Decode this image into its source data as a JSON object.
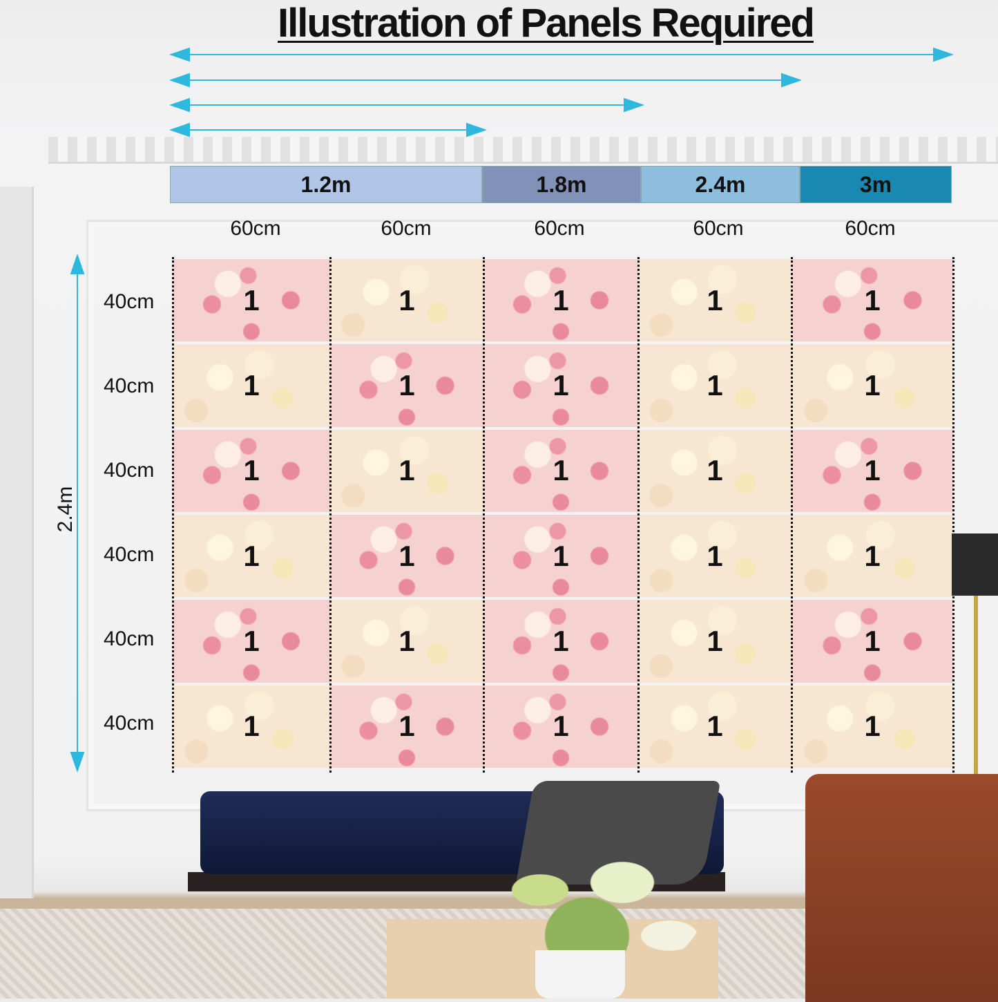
{
  "title": "Illustration of Panels Required",
  "width_options": [
    {
      "label": "1.2m",
      "color": "#b1c5e6"
    },
    {
      "label": "1.8m",
      "color": "#8191b7"
    },
    {
      "label": "2.4m",
      "color": "#8ebedd"
    },
    {
      "label": "3m",
      "color": "#1989b3"
    }
  ],
  "arrow_color": "#2fb8de",
  "column_widths": [
    "60cm",
    "60cm",
    "60cm",
    "60cm",
    "60cm"
  ],
  "row_heights": [
    "40cm",
    "40cm",
    "40cm",
    "40cm",
    "40cm",
    "40cm"
  ],
  "total_height": "2.4m",
  "panel_count_label": "1",
  "panel_pattern": [
    [
      "pink",
      "cream",
      "pink",
      "cream",
      "pink"
    ],
    [
      "cream",
      "pink",
      "pink",
      "cream",
      "cream"
    ],
    [
      "pink",
      "cream",
      "pink",
      "cream",
      "pink"
    ],
    [
      "cream",
      "pink",
      "pink",
      "cream",
      "cream"
    ],
    [
      "pink",
      "cream",
      "pink",
      "cream",
      "pink"
    ],
    [
      "cream",
      "pink",
      "pink",
      "cream",
      "cream"
    ]
  ]
}
